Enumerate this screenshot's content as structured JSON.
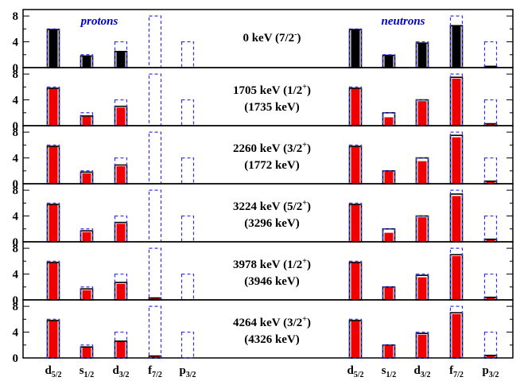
{
  "chart_data": {
    "type": "bar",
    "group_labels": {
      "protons": "protons",
      "neutrons": "neutrons"
    },
    "orbital_labels": {
      "protons": [
        {
          "base": "d",
          "sub": "5/2"
        },
        {
          "base": "s",
          "sub": "1/2"
        },
        {
          "base": "d",
          "sub": "3/2"
        },
        {
          "base": "f",
          "sub": "7/2"
        },
        {
          "base": "p",
          "sub": "3/2"
        }
      ],
      "neutrons": [
        {
          "base": "d",
          "sub": "5/2"
        },
        {
          "base": "s",
          "sub": "1/2"
        },
        {
          "base": "d",
          "sub": "3/2"
        },
        {
          "base": "f",
          "sub": "7/2"
        },
        {
          "base": "p",
          "sub": "3/2"
        }
      ]
    },
    "capacity": [
      6,
      2,
      4,
      8,
      4
    ],
    "ylim": [
      0,
      9
    ],
    "yticks": [
      "0",
      "4",
      "8"
    ],
    "colors": {
      "ground": "#000000",
      "excited": "#ee0000",
      "capacity": "#3333ee",
      "outline": "#000000"
    },
    "panels": [
      {
        "label": "0 keV (7/2",
        "parity": "-",
        "close": ")",
        "label2": "",
        "protons": {
          "bar": [
            5.9,
            1.8,
            2.5,
            0,
            0
          ],
          "box": [
            5.9,
            1.8,
            2.5,
            0,
            0
          ]
        },
        "neutrons": {
          "bar": [
            5.9,
            1.9,
            3.8,
            6.5,
            0.2
          ],
          "box": [
            5.9,
            1.9,
            3.8,
            6.5,
            0.2
          ]
        },
        "fill": "ground"
      },
      {
        "label": "1705 keV (1/2",
        "parity": "+",
        "close": ")",
        "label2": "(1735 keV)",
        "protons": {
          "bar": [
            5.8,
            1.4,
            2.8,
            0,
            0
          ],
          "box": [
            5.8,
            1.5,
            3.0,
            0,
            0
          ]
        },
        "neutrons": {
          "bar": [
            5.8,
            1.3,
            3.8,
            7.3,
            0.3
          ],
          "box": [
            5.8,
            2.0,
            4.0,
            7.5,
            0.3
          ]
        },
        "fill": "excited"
      },
      {
        "label": "2260 keV (3/2",
        "parity": "+",
        "close": ")",
        "label2": "(1772 keV)",
        "protons": {
          "bar": [
            5.8,
            1.6,
            2.7,
            0,
            0
          ],
          "box": [
            5.8,
            1.8,
            2.9,
            0,
            0
          ]
        },
        "neutrons": {
          "bar": [
            5.8,
            1.9,
            3.5,
            7.2,
            0.4
          ],
          "box": [
            5.8,
            2.0,
            4.0,
            7.5,
            0.4
          ]
        },
        "fill": "excited"
      },
      {
        "label": "3224 keV (5/2",
        "parity": "+",
        "close": ")",
        "label2": "(3296 keV)",
        "protons": {
          "bar": [
            5.8,
            1.5,
            2.8,
            0,
            0
          ],
          "box": [
            5.8,
            1.7,
            3.0,
            0,
            0
          ]
        },
        "neutrons": {
          "bar": [
            5.8,
            1.4,
            3.8,
            7.1,
            0.4
          ],
          "box": [
            5.8,
            2.0,
            4.0,
            7.4,
            0.4
          ]
        },
        "fill": "excited"
      },
      {
        "label": "3978 keV (1/2",
        "parity": "+",
        "close": ")",
        "label2": "(3946 keV)",
        "protons": {
          "bar": [
            5.8,
            1.5,
            2.5,
            0.3,
            0
          ],
          "box": [
            5.8,
            1.7,
            2.7,
            0.3,
            0
          ]
        },
        "neutrons": {
          "bar": [
            5.8,
            1.9,
            3.5,
            6.8,
            0.4
          ],
          "box": [
            5.8,
            2.0,
            3.8,
            7.0,
            0.4
          ]
        },
        "fill": "excited"
      },
      {
        "label": "4264 keV (3/2",
        "parity": "+",
        "close": ")",
        "label2": "(4326 keV)",
        "protons": {
          "bar": [
            5.8,
            1.6,
            2.6,
            0.3,
            0
          ],
          "box": [
            5.8,
            1.7,
            2.6,
            0.3,
            0
          ]
        },
        "neutrons": {
          "bar": [
            5.8,
            1.9,
            3.6,
            6.8,
            0.4
          ],
          "box": [
            5.8,
            2.0,
            3.8,
            7.0,
            0.4
          ]
        },
        "fill": "excited"
      }
    ]
  }
}
